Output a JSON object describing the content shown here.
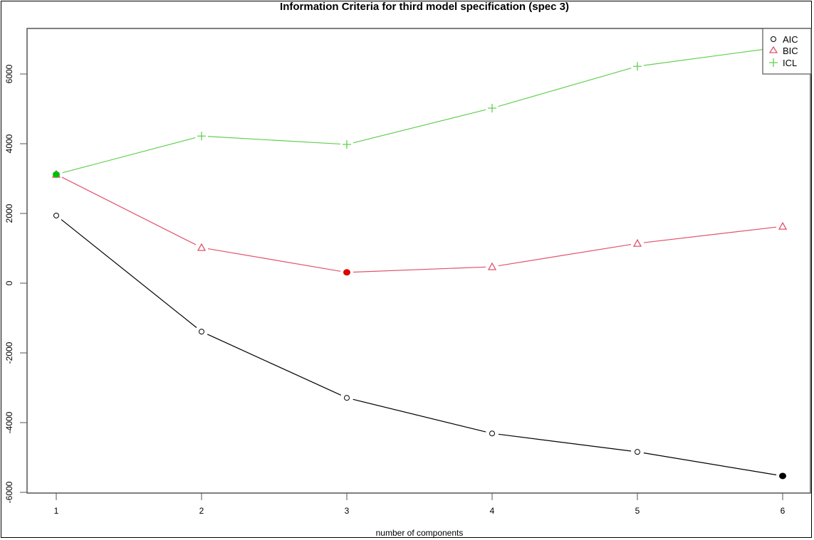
{
  "chart_data": {
    "type": "line",
    "title": "Information Criteria for third model specification (spec 3)",
    "xlabel": "number of components",
    "ylabel": "",
    "x": [
      1,
      2,
      3,
      4,
      5,
      6
    ],
    "x_tick_labels": [
      "1",
      "2",
      "3",
      "4",
      "5",
      "6"
    ],
    "y_tick_labels": [
      "-6000",
      "-4000",
      "-2000",
      "0",
      "2000",
      "4000",
      "6000"
    ],
    "y_ticks": [
      -6000,
      -4000,
      -2000,
      0,
      2000,
      4000,
      6000
    ],
    "ylim": [
      -6000,
      7000
    ],
    "xlim": [
      0.8,
      6.2
    ],
    "grid": false,
    "legend_position": "top-right",
    "series": [
      {
        "name": "AIC",
        "color": "#000000",
        "marker": "circle",
        "values": [
          1940,
          -1390,
          -3290,
          -4310,
          -4840,
          -5530
        ],
        "highlight_index": 5,
        "highlight_color": "#000000"
      },
      {
        "name": "BIC",
        "color": "#DF536B",
        "marker": "triangle",
        "values": [
          3120,
          1020,
          310,
          470,
          1140,
          1630
        ],
        "highlight_index": 2,
        "highlight_color": "#E00000"
      },
      {
        "name": "ICL",
        "color": "#61D04F",
        "marker": "plus",
        "values": [
          3120,
          4220,
          3980,
          5020,
          6220,
          6780
        ],
        "highlight_index": 0,
        "highlight_color": "#00C000"
      }
    ]
  },
  "legend": {
    "items": [
      {
        "label": "AIC"
      },
      {
        "label": "BIC"
      },
      {
        "label": "ICL"
      }
    ]
  }
}
